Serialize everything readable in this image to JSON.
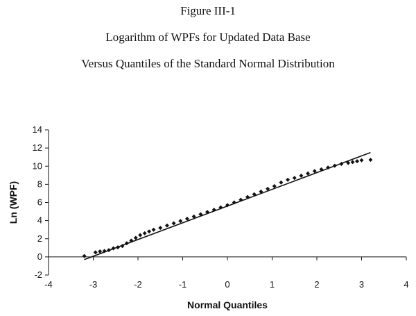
{
  "header": {
    "figure_label": "Figure III-1",
    "title_line1": "Logarithm of WPFs for Updated Data Base",
    "title_line2": "Versus Quantiles of the Standard Normal Distribution"
  },
  "chart_data": {
    "type": "scatter",
    "title": "Logarithm of WPFs for Updated Data Base Versus Quantiles of the Standard Normal Distribution",
    "xlabel": "Normal Quantiles",
    "ylabel": "Ln (WPF)",
    "xlim": [
      -4,
      4
    ],
    "ylim": [
      -2,
      14
    ],
    "xticks": [
      -4,
      -3,
      -2,
      -1,
      0,
      1,
      2,
      3,
      4
    ],
    "yticks": [
      -2,
      0,
      2,
      4,
      6,
      8,
      10,
      12,
      14
    ],
    "grid": false,
    "legend": "none",
    "colors": {
      "points": "#111111",
      "line": "#111111",
      "axes": "#111111"
    },
    "series": [
      {
        "type": "scatter",
        "marker": "diamond",
        "x": [
          -3.2,
          -2.95,
          -2.85,
          -2.75,
          -2.65,
          -2.55,
          -2.45,
          -2.35,
          -2.25,
          -2.15,
          -2.05,
          -1.95,
          -1.85,
          -1.75,
          -1.65,
          -1.5,
          -1.35,
          -1.2,
          -1.05,
          -0.9,
          -0.75,
          -0.6,
          -0.45,
          -0.3,
          -0.15,
          0.0,
          0.15,
          0.3,
          0.45,
          0.6,
          0.75,
          0.9,
          1.05,
          1.2,
          1.35,
          1.5,
          1.65,
          1.8,
          1.95,
          2.1,
          2.25,
          2.4,
          2.55,
          2.7,
          2.8,
          2.9,
          3.0,
          3.2
        ],
        "y": [
          0.1,
          0.5,
          0.6,
          0.65,
          0.75,
          0.95,
          1.05,
          1.2,
          1.5,
          1.8,
          2.1,
          2.4,
          2.6,
          2.8,
          3.0,
          3.2,
          3.45,
          3.7,
          3.95,
          4.2,
          4.45,
          4.7,
          4.95,
          5.2,
          5.45,
          5.7,
          6.0,
          6.3,
          6.6,
          6.9,
          7.2,
          7.5,
          7.8,
          8.2,
          8.5,
          8.7,
          8.95,
          9.2,
          9.45,
          9.65,
          9.85,
          10.05,
          10.25,
          10.35,
          10.45,
          10.55,
          10.65,
          10.7
        ]
      },
      {
        "type": "line",
        "x": [
          -3.2,
          3.2
        ],
        "y": [
          -0.3,
          11.5
        ]
      }
    ]
  }
}
